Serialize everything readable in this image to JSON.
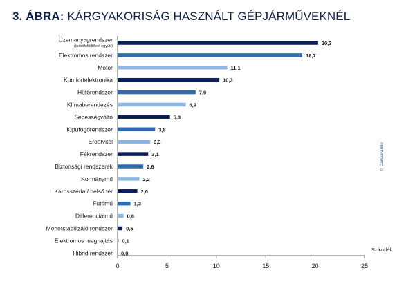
{
  "title": {
    "number": "3. ÁBRA:",
    "text": "KÁRGYAKORISÁG HASZNÁLT GÉPJÁRMŰVEKNÉL"
  },
  "credit": "© CarGarantie",
  "colors": {
    "dark": "#0d1f56",
    "medium": "#2e6cb0",
    "light": "#8cb6df",
    "axis": "#444444",
    "label": "#1a1a1a"
  },
  "chart_data": {
    "type": "bar",
    "orientation": "horizontal",
    "categories": [
      "Üzemanyagrendszer",
      "Elektromos rendszer",
      "Motor",
      "Komfortelektronika",
      "Hűtőrendszer",
      "Klímaberendezés",
      "Sebességváltó",
      "Kipufogórendszer",
      "Erőátvitel",
      "Fékrendszer",
      "Biztonsági rendszerek",
      "Kormánymű",
      "Karosszéria / belső tér",
      "Futómű",
      "Differenciálmű",
      "Menetstabilizáló rendszer",
      "Elektromos meghajtás",
      "Hibrid rendszer"
    ],
    "category_sublabels": [
      "(turbófeltöltővel együtt)",
      "",
      "",
      "",
      "",
      "",
      "",
      "",
      "",
      "",
      "",
      "",
      "",
      "",
      "",
      "",
      "",
      ""
    ],
    "values": [
      20.3,
      18.7,
      11.1,
      10.3,
      7.9,
      6.9,
      5.3,
      3.8,
      3.3,
      3.1,
      2.6,
      2.2,
      2.0,
      1.3,
      0.6,
      0.5,
      0.1,
      0.0
    ],
    "value_labels": [
      "20,3",
      "18,7",
      "11,1",
      "10,3",
      "7,9",
      "6,9",
      "5,3",
      "3,8",
      "3,3",
      "3,1",
      "2,6",
      "2,2",
      "2,0",
      "1,3",
      "0,6",
      "0,5",
      "0,1",
      "0,0"
    ],
    "bar_colors": [
      "dark",
      "medium",
      "light",
      "dark",
      "medium",
      "light",
      "dark",
      "medium",
      "light",
      "dark",
      "medium",
      "light",
      "dark",
      "medium",
      "light",
      "dark",
      "medium",
      "light"
    ],
    "xlim": [
      0,
      25
    ],
    "xticks": [
      0,
      5,
      10,
      15,
      20,
      25
    ],
    "xlabel": "Százalék",
    "grid": false,
    "legend": "none"
  }
}
